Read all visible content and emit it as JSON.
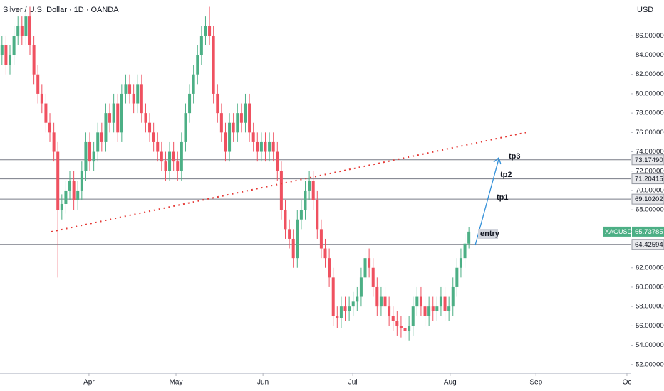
{
  "chart_data": {
    "type": "candlestick",
    "title": "Silver / U.S. Dollar · 1D · OANDA",
    "y_axis_label": "USD",
    "up_color": "#4caf85",
    "down_color": "#ef5160",
    "open": [
      84,
      85,
      83,
      84,
      86,
      87,
      86,
      88,
      85,
      82,
      80,
      79,
      77,
      76,
      74,
      68,
      68.6,
      70,
      71,
      69,
      70,
      72,
      75,
      73,
      74,
      76,
      75,
      78,
      77,
      79,
      76,
      80,
      81,
      80,
      79,
      81,
      78,
      77,
      76,
      75,
      74,
      73,
      72,
      74,
      73,
      72,
      75,
      78,
      80,
      82,
      84,
      86,
      87,
      86,
      80,
      78,
      76,
      74,
      77,
      76,
      78,
      77,
      79,
      76,
      75,
      74,
      75,
      74,
      75,
      74,
      72,
      68,
      66,
      65,
      63,
      67,
      68,
      70,
      71,
      69,
      66,
      64,
      63,
      61,
      57,
      56.8,
      58,
      57.5,
      58,
      58.5,
      59,
      61,
      63,
      62,
      60,
      58,
      59,
      58,
      57,
      56.5,
      56,
      55.8,
      55.5,
      56,
      58,
      59,
      58,
      57,
      58,
      57.5,
      58,
      59,
      57.5,
      58,
      60,
      62,
      63,
      64.5
    ],
    "high": [
      86,
      86,
      85,
      87,
      88,
      88,
      89,
      89,
      86,
      83,
      81,
      80,
      78,
      77,
      75,
      69.6,
      71,
      72,
      72,
      71,
      73,
      76,
      76,
      75,
      77,
      77,
      79,
      79,
      80,
      80,
      81,
      82,
      82,
      81,
      82,
      82,
      79,
      78,
      77,
      76,
      75,
      74,
      75,
      75,
      74,
      76,
      79,
      81,
      83,
      85,
      87,
      88,
      89,
      87,
      81,
      79,
      77,
      78,
      78,
      79,
      79,
      80,
      80,
      77,
      76,
      76,
      76,
      76,
      76,
      75,
      73,
      69,
      67,
      66,
      68,
      69,
      71,
      72,
      72,
      70,
      67,
      65,
      64,
      62,
      58,
      59,
      59,
      59,
      59.5,
      60,
      62,
      64,
      64,
      63,
      61,
      60,
      60,
      59,
      58,
      57.5,
      57,
      56.8,
      57,
      59,
      60,
      60,
      59,
      59,
      59,
      59,
      60,
      60,
      59,
      61,
      63,
      64,
      65.5,
      66.2
    ],
    "low": [
      83,
      82,
      82,
      83,
      85,
      85,
      85,
      84,
      81,
      79,
      78,
      76,
      75,
      73,
      61,
      67,
      67.6,
      69,
      68,
      68,
      69,
      71,
      72,
      72,
      73,
      74,
      74,
      76,
      76,
      75,
      75,
      79,
      79,
      78,
      78,
      77,
      76,
      75,
      74,
      73,
      72,
      71,
      71,
      72,
      71,
      71,
      74,
      77,
      79,
      81,
      83,
      85,
      85,
      79,
      77,
      75,
      73,
      73,
      75,
      75,
      76,
      76,
      75,
      74,
      73,
      73,
      73,
      73,
      73,
      71,
      67,
      65,
      64,
      62,
      62,
      66,
      67,
      69,
      68,
      65,
      63,
      62,
      60,
      56,
      55.8,
      55.8,
      56.5,
      56.5,
      57,
      57.5,
      58,
      60,
      61,
      59,
      57,
      57,
      57,
      56,
      55.5,
      55,
      54.8,
      54.5,
      54.5,
      55,
      57,
      57,
      56,
      56,
      56.5,
      56.5,
      57,
      56.5,
      56.5,
      57,
      59,
      61,
      62,
      64
    ],
    "close": [
      85,
      83,
      84,
      86,
      87,
      86,
      88,
      85,
      82,
      80,
      79,
      77,
      76,
      74,
      68,
      68.6,
      70,
      71,
      69,
      70,
      72,
      75,
      73,
      74,
      76,
      75,
      78,
      77,
      79,
      76,
      80,
      81,
      80,
      79,
      81,
      78,
      77,
      76,
      75,
      74,
      73,
      72,
      74,
      73,
      72,
      75,
      78,
      80,
      82,
      84,
      86,
      87,
      86,
      80,
      78,
      76,
      74,
      77,
      76,
      78,
      77,
      79,
      76,
      75,
      74,
      75,
      74,
      75,
      74,
      72,
      68,
      66,
      65,
      63,
      67,
      68,
      70,
      71,
      69,
      66,
      64,
      63,
      61,
      57,
      56.8,
      58,
      57.5,
      58,
      58.5,
      59,
      61,
      63,
      62,
      60,
      58,
      59,
      58,
      57,
      56.5,
      56,
      55.8,
      55.5,
      56,
      58,
      59,
      58,
      57,
      58,
      57.5,
      58,
      59,
      57.5,
      58,
      60,
      62,
      63,
      64.5,
      65.74
    ],
    "xlim": [
      -0.5,
      157.5
    ],
    "xticks": [
      {
        "value": 21.8,
        "label": "Apr"
      },
      {
        "value": 43.6,
        "label": "May"
      },
      {
        "value": 65.4,
        "label": "Jun"
      },
      {
        "value": 87.9,
        "label": "Jul"
      },
      {
        "value": 112.3,
        "label": "Aug"
      },
      {
        "value": 133.8,
        "label": "Sep"
      },
      {
        "value": 156.6,
        "label": "Oc"
      }
    ],
    "ylim": [
      51.1,
      89.7
    ],
    "yticks": [
      {
        "value": 52,
        "label": "52.00000"
      },
      {
        "value": 54,
        "label": "54.00000"
      },
      {
        "value": 56,
        "label": "56.00000"
      },
      {
        "value": 58,
        "label": "58.00000"
      },
      {
        "value": 60,
        "label": "60.00000"
      },
      {
        "value": 62,
        "label": "62.00000"
      },
      {
        "value": 68,
        "label": "68.00000"
      },
      {
        "value": 70,
        "label": "70.00000"
      },
      {
        "value": 72,
        "label": "72.00000"
      },
      {
        "value": 74,
        "label": "74.00000"
      },
      {
        "value": 76,
        "label": "76.00000"
      },
      {
        "value": 78,
        "label": "78.00000"
      },
      {
        "value": 80,
        "label": "80.00000"
      },
      {
        "value": 82,
        "label": "82.00000"
      },
      {
        "value": 84,
        "label": "84.00000"
      },
      {
        "value": 86,
        "label": "86.00000"
      }
    ],
    "levels": [
      {
        "value": 73.1749,
        "label": "73.17490"
      },
      {
        "value": 71.20415,
        "label": "71.20415"
      },
      {
        "value": 69.10202,
        "label": "69.10202"
      },
      {
        "value": 64.42594,
        "label": "64.42594"
      }
    ],
    "last_price": {
      "symbol": "XAGUSD",
      "value": 65.73785,
      "label": "65.73785"
    },
    "annotations": [
      "tp3",
      "tp2",
      "tp1",
      "entry"
    ]
  }
}
